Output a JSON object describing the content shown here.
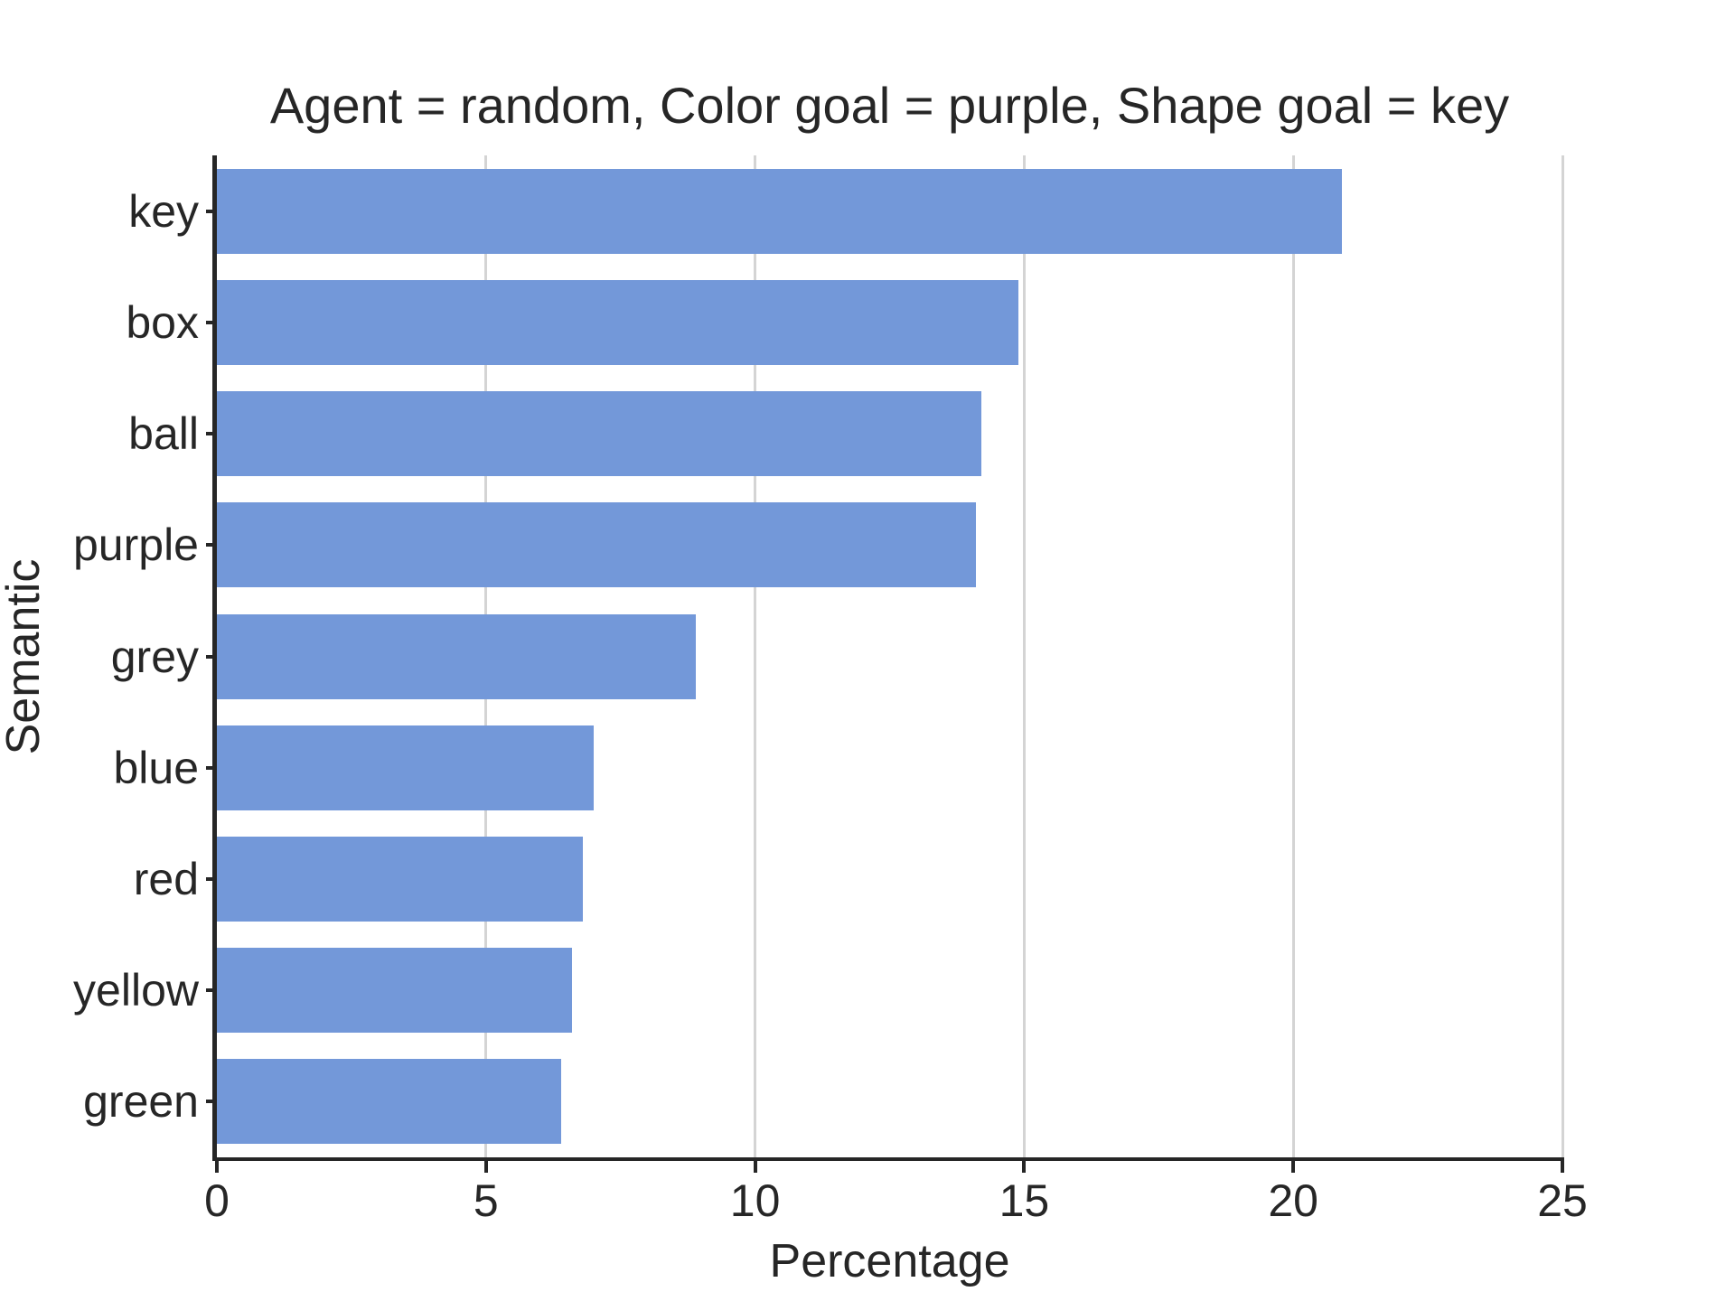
{
  "chart_data": {
    "type": "bar",
    "orientation": "horizontal",
    "title": "Agent = random, Color goal = purple, Shape goal = key",
    "xlabel": "Percentage",
    "ylabel": "Semantic",
    "categories": [
      "key",
      "box",
      "ball",
      "purple",
      "grey",
      "blue",
      "red",
      "yellow",
      "green"
    ],
    "values": [
      20.9,
      14.9,
      14.2,
      14.1,
      8.9,
      7.0,
      6.8,
      6.6,
      6.4
    ],
    "xlim": [
      0,
      25
    ],
    "xticks": [
      0,
      5,
      10,
      15,
      20,
      25
    ],
    "grid": "vertical-gridlines-at-xticks",
    "legend": "none",
    "bar_color": "#7398d9",
    "grid_color": "#d4d4d4",
    "spine_color": "#262626",
    "text_color": "#262626",
    "background_color": "#ffffff"
  }
}
